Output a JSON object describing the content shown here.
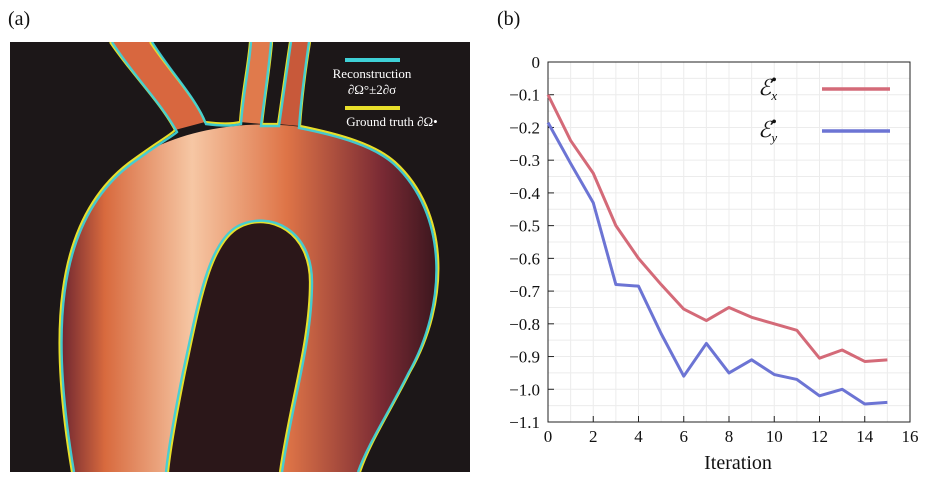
{
  "panels": {
    "a_label": "(a)",
    "b_label": "(b)"
  },
  "image_panel": {
    "legend": [
      {
        "name": "Reconstruction",
        "line2": "∂Ω°±2∂σ",
        "color": "#3fd0d6"
      },
      {
        "name": "Ground truth ∂Ω•",
        "color": "#e8df2a"
      }
    ],
    "colors": {
      "background": "#1c1718",
      "vessel_light": "#f6c7a4",
      "vessel_mid": "#d9663c",
      "vessel_dark": "#5c1e2a"
    }
  },
  "chart_data": {
    "type": "line",
    "xlabel": "Iteration",
    "ylabel": "",
    "xlim": [
      0,
      16
    ],
    "ylim": [
      -1.1,
      0
    ],
    "xticks": [
      0,
      2,
      4,
      6,
      8,
      10,
      12,
      14,
      16
    ],
    "yticks": [
      0,
      -0.1,
      -0.2,
      -0.3,
      -0.4,
      -0.5,
      -0.6,
      -0.7,
      -0.8,
      -0.9,
      -1.0,
      -1.1
    ],
    "ytick_labels": [
      "0",
      "-0.1",
      "-0.2",
      "-0.3",
      "-0.4",
      "-0.5",
      "-0.6",
      "-0.7",
      "-0.8",
      "-0.9",
      "-1.0",
      "-1.1"
    ],
    "grid": true,
    "legend_position": "top-right",
    "x": [
      0,
      1,
      2,
      3,
      4,
      5,
      6,
      7,
      8,
      9,
      10,
      11,
      12,
      13,
      14,
      15
    ],
    "series": [
      {
        "name": "ℰx•",
        "symbol": "ℰ",
        "sub": "x",
        "sup": "•",
        "color": "#d46a78",
        "values": [
          -0.1,
          -0.24,
          -0.34,
          -0.5,
          -0.6,
          -0.68,
          -0.755,
          -0.79,
          -0.75,
          -0.78,
          -0.8,
          -0.82,
          -0.905,
          -0.88,
          -0.915,
          -0.91
        ]
      },
      {
        "name": "ℰy•",
        "symbol": "ℰ",
        "sub": "y",
        "sup": "•",
        "color": "#6c74d4",
        "values": [
          -0.185,
          -0.31,
          -0.43,
          -0.68,
          -0.685,
          -0.83,
          -0.96,
          -0.86,
          -0.95,
          -0.91,
          -0.955,
          -0.97,
          -1.02,
          -1.0,
          -1.045,
          -1.04
        ]
      }
    ]
  }
}
